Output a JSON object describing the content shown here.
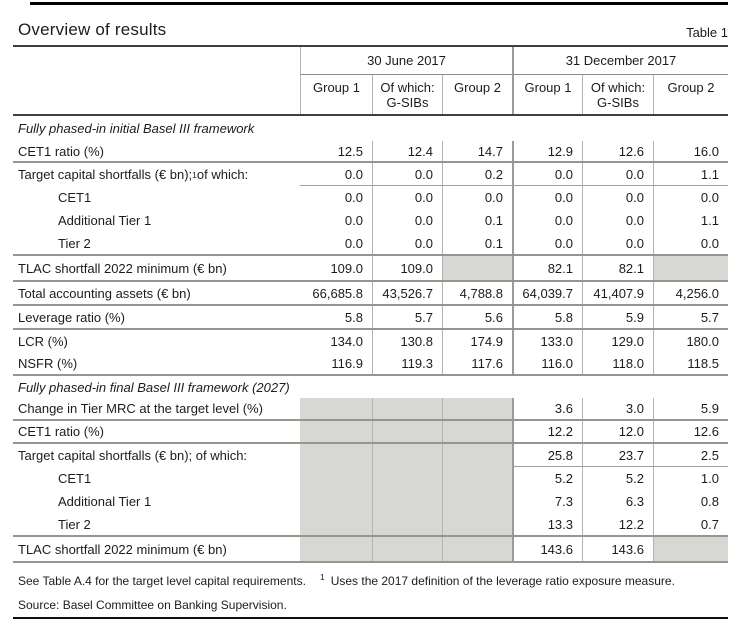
{
  "page": {
    "title": "Overview of results",
    "table_label": "Table 1"
  },
  "header": {
    "date_groups": [
      "30 June 2017",
      "31 December 2017"
    ],
    "columns": [
      "Group 1",
      "Of which: G-SIBs",
      "Group 2",
      "Group 1",
      "Of which: G-SIBs",
      "Group 2"
    ]
  },
  "s1": {
    "header": "Fully phased-in initial Basel III framework",
    "rows": [
      {
        "label": "CET1 ratio (%)",
        "values": [
          "12.5",
          "12.4",
          "14.7",
          "12.9",
          "12.6",
          "16.0"
        ]
      },
      {
        "label_pre": "Target capital shortfalls (€ bn);",
        "sup": "1",
        "label_post": " of which:",
        "values": [
          "0.0",
          "0.0",
          "0.2",
          "0.0",
          "0.0",
          "1.1"
        ]
      },
      {
        "label": "CET1",
        "values": [
          "0.0",
          "0.0",
          "0.0",
          "0.0",
          "0.0",
          "0.0"
        ]
      },
      {
        "label": "Additional Tier 1",
        "values": [
          "0.0",
          "0.0",
          "0.1",
          "0.0",
          "0.0",
          "1.1"
        ]
      },
      {
        "label": "Tier 2",
        "values": [
          "0.0",
          "0.0",
          "0.1",
          "0.0",
          "0.0",
          "0.0"
        ]
      },
      {
        "label": "TLAC shortfall 2022 minimum (€ bn)",
        "values": [
          "109.0",
          "109.0",
          null,
          "82.1",
          "82.1",
          null
        ]
      },
      {
        "label": "Total accounting assets (€ bn)",
        "values": [
          "66,685.8",
          "43,526.7",
          "4,788.8",
          "64,039.7",
          "41,407.9",
          "4,256.0"
        ]
      },
      {
        "label": "Leverage ratio (%)",
        "values": [
          "5.8",
          "5.7",
          "5.6",
          "5.8",
          "5.9",
          "5.7"
        ]
      },
      {
        "label": "LCR (%)",
        "values": [
          "134.0",
          "130.8",
          "174.9",
          "133.0",
          "129.0",
          "180.0"
        ]
      },
      {
        "label": "NSFR (%)",
        "values": [
          "116.9",
          "119.3",
          "117.6",
          "116.0",
          "118.0",
          "118.5"
        ]
      }
    ]
  },
  "s2": {
    "header": "Fully phased-in final Basel III framework (2027)",
    "rows": [
      {
        "label": "Change in Tier MRC at the target level (%)",
        "values": [
          null,
          null,
          null,
          "3.6",
          "3.0",
          "5.9"
        ]
      },
      {
        "label": "CET1 ratio (%)",
        "values": [
          null,
          null,
          null,
          "12.2",
          "12.0",
          "12.6"
        ]
      },
      {
        "label": "Target capital shortfalls (€ bn); of which:",
        "values": [
          null,
          null,
          null,
          "25.8",
          "23.7",
          "2.5"
        ]
      },
      {
        "label": "CET1",
        "values": [
          null,
          null,
          null,
          "5.2",
          "5.2",
          "1.0"
        ]
      },
      {
        "label": "Additional Tier 1",
        "values": [
          null,
          null,
          null,
          "7.3",
          "6.3",
          "0.8"
        ]
      },
      {
        "label": "Tier 2",
        "values": [
          null,
          null,
          null,
          "13.3",
          "12.2",
          "0.7"
        ]
      },
      {
        "label": "TLAC shortfall 2022 minimum (€ bn)",
        "values": [
          null,
          null,
          null,
          "143.6",
          "143.6",
          null
        ]
      }
    ]
  },
  "notes": {
    "table_note": "See Table A.4 for the target level capital requirements.",
    "footnote_marker": "1",
    "footnote_text": "Uses the 2017 definition of the leverage ratio exposure measure.",
    "source": "Source: Basel Committee on Banking Supervision."
  },
  "colors": {
    "shaded_cell": "#d7d7d3"
  }
}
